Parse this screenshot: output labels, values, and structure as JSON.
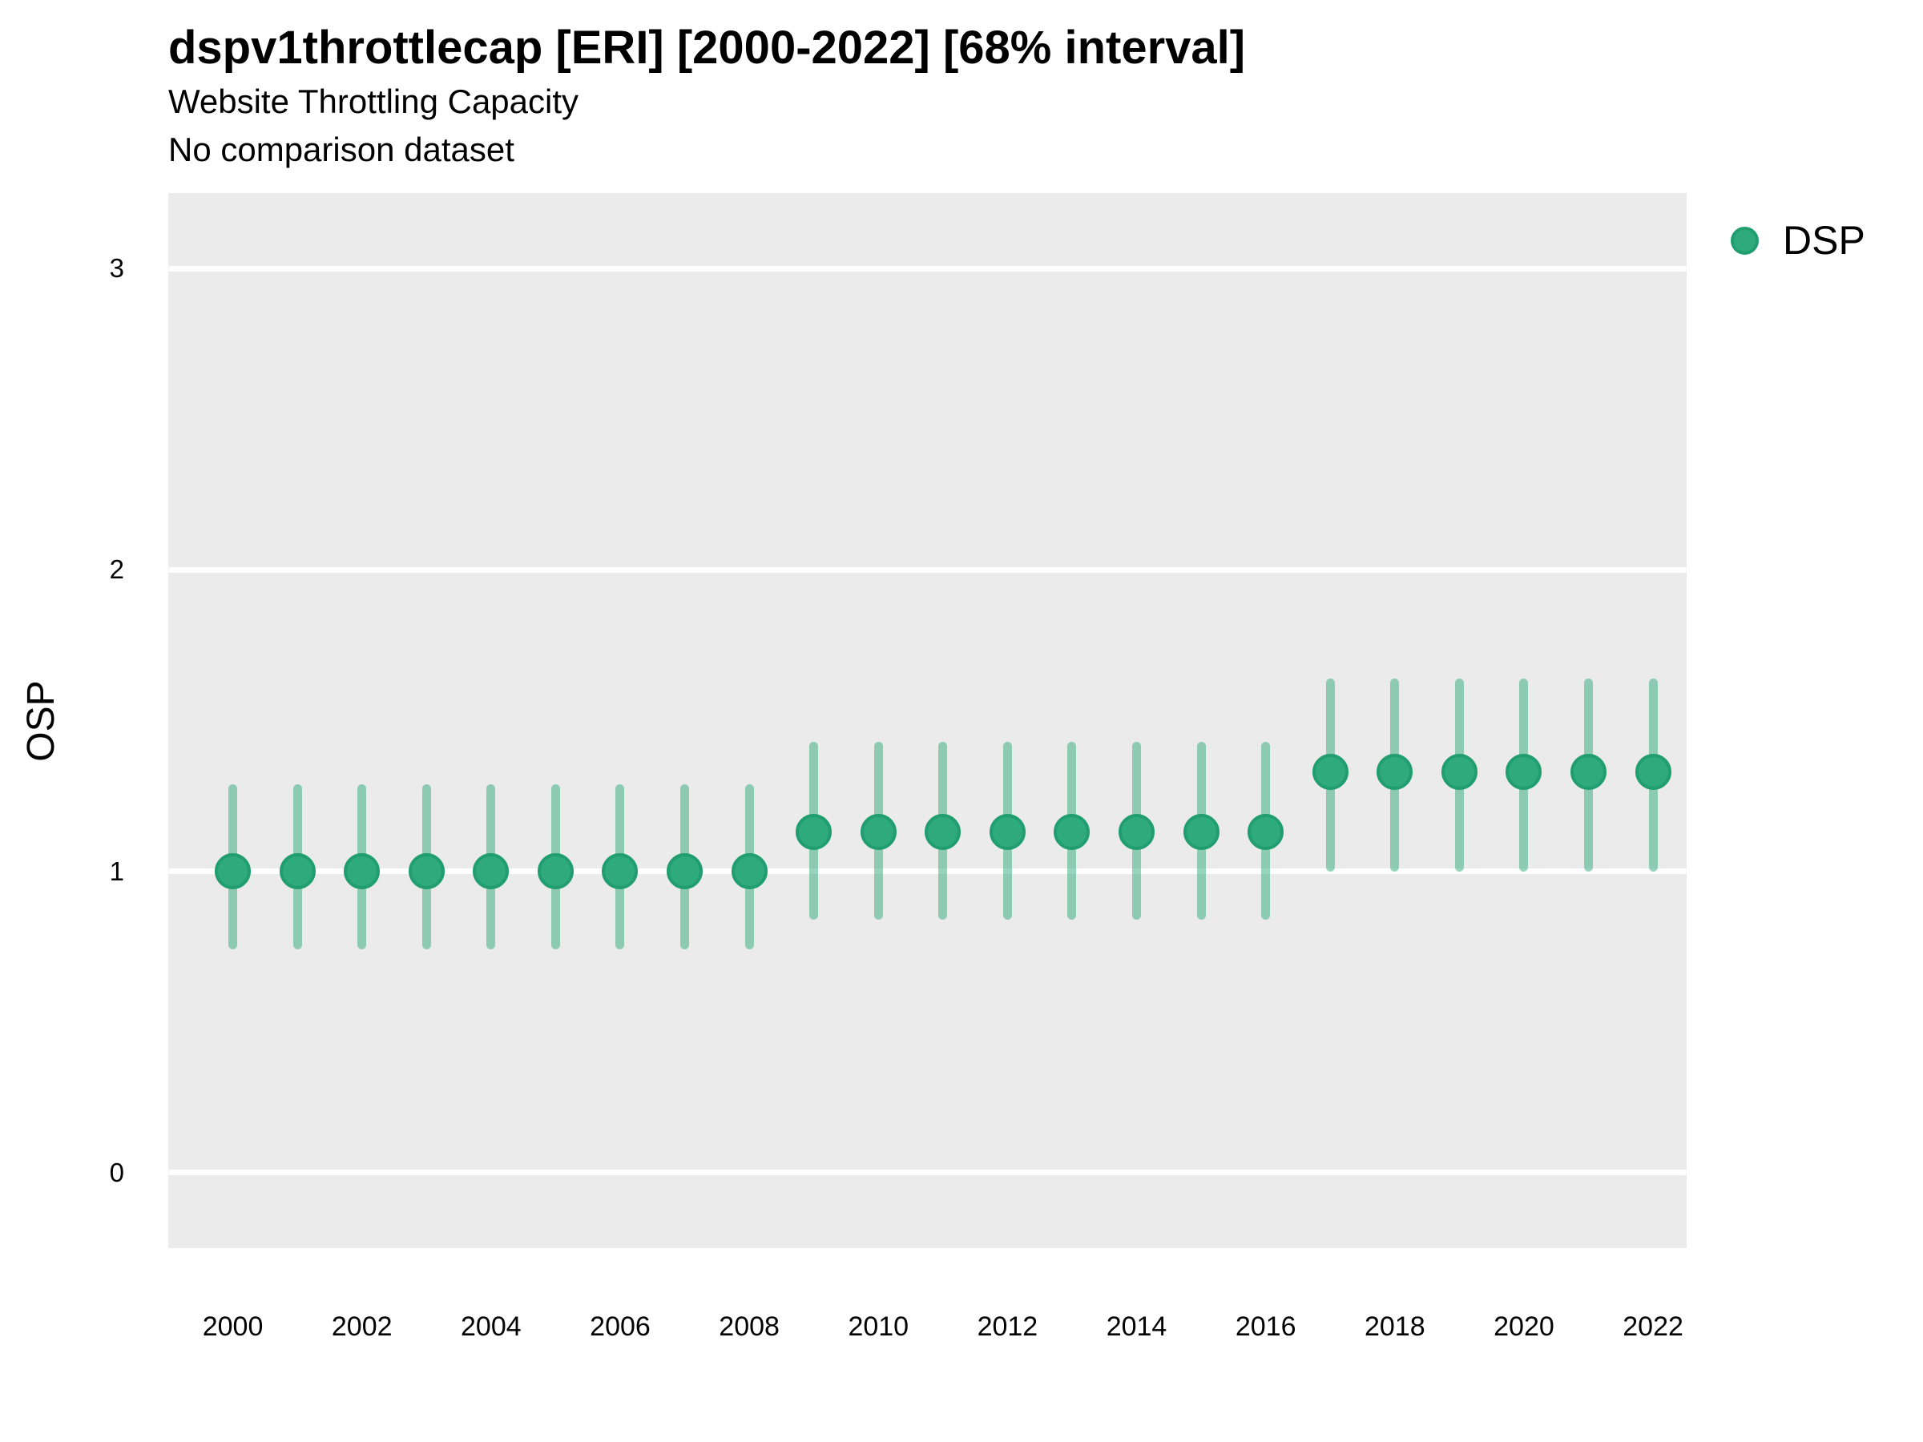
{
  "header": {
    "title": "dspv1throttlecap [ERI] [2000-2022] [68% interval]",
    "subtitle": "Website Throttling Capacity",
    "note": "No comparison dataset"
  },
  "legend": {
    "position": "right",
    "items": [
      {
        "label": "DSP",
        "color": "#2FAA7C",
        "ring_color": "#219E70",
        "marker": "circle"
      }
    ]
  },
  "axes": {
    "y_title": "OSP",
    "y_tick_labels": [
      "0",
      "1",
      "2",
      "3"
    ],
    "x_tick_labels": [
      "2000",
      "2002",
      "2004",
      "2006",
      "2008",
      "2010",
      "2012",
      "2014",
      "2016",
      "2018",
      "2020",
      "2022"
    ]
  },
  "colors": {
    "panel_background": "#EBEBEB",
    "gridline": "#FFFFFF",
    "point_fill": "#2FAA7C",
    "point_ring": "#219E70",
    "errorbar": "#2FAA7C",
    "text": "#000000"
  },
  "chart_data": {
    "type": "scatter",
    "subtype": "pointrange",
    "title": "dspv1throttlecap [ERI] [2000-2022] [68% interval]",
    "subtitle": "Website Throttling Capacity",
    "note": "No comparison dataset",
    "interval": "68% interval",
    "xlabel": "",
    "ylabel": "OSP",
    "xlim": [
      1999.0,
      2022.52
    ],
    "ylim": [
      -0.25,
      3.25
    ],
    "xticks": [
      2000,
      2002,
      2004,
      2006,
      2008,
      2010,
      2012,
      2014,
      2016,
      2018,
      2020,
      2022
    ],
    "yticks": [
      0,
      1,
      2,
      3
    ],
    "grid": "horizontal-major-only",
    "legend_position": "right",
    "series": [
      {
        "name": "DSP",
        "color": "#2FAA7C",
        "errorbar_opacity": 0.5,
        "x": [
          2000,
          2001,
          2002,
          2003,
          2004,
          2005,
          2006,
          2007,
          2008,
          2009,
          2010,
          2011,
          2012,
          2013,
          2014,
          2015,
          2016,
          2017,
          2018,
          2019,
          2020,
          2021,
          2022
        ],
        "y": [
          1.0,
          1.0,
          1.0,
          1.0,
          1.0,
          1.0,
          1.0,
          1.0,
          1.0,
          1.13,
          1.13,
          1.13,
          1.13,
          1.13,
          1.13,
          1.13,
          1.13,
          1.33,
          1.33,
          1.33,
          1.33,
          1.33,
          1.33
        ],
        "y_lo": [
          0.74,
          0.74,
          0.74,
          0.74,
          0.74,
          0.74,
          0.74,
          0.74,
          0.74,
          0.84,
          0.84,
          0.84,
          0.84,
          0.84,
          0.84,
          0.84,
          0.84,
          1.0,
          1.0,
          1.0,
          1.0,
          1.0,
          1.0
        ],
        "y_hi": [
          1.29,
          1.29,
          1.29,
          1.29,
          1.29,
          1.29,
          1.29,
          1.29,
          1.29,
          1.43,
          1.43,
          1.43,
          1.43,
          1.43,
          1.43,
          1.43,
          1.43,
          1.64,
          1.64,
          1.64,
          1.64,
          1.64,
          1.64
        ]
      }
    ]
  }
}
